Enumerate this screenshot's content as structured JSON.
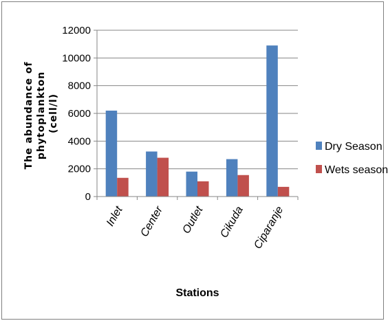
{
  "chart_data": {
    "type": "bar",
    "categories": [
      "Inlet",
      "Center",
      "Outlet",
      "Cikuda",
      "Ciparanje"
    ],
    "series": [
      {
        "name": "Dry Season",
        "values": [
          6200,
          3250,
          1800,
          2700,
          10900
        ],
        "color": "#4f81bd"
      },
      {
        "name": "Wets season",
        "values": [
          1350,
          2800,
          1100,
          1550,
          700
        ],
        "color": "#c0504d"
      }
    ],
    "ylabel_lines": [
      "The abundance of",
      "phytoplankton",
      "(cell/l)"
    ],
    "xlabel": "Stations",
    "ylim": [
      0,
      12000
    ],
    "yticks": [
      0,
      2000,
      4000,
      6000,
      8000,
      10000,
      12000
    ],
    "grid": true,
    "legend_position": "right"
  }
}
